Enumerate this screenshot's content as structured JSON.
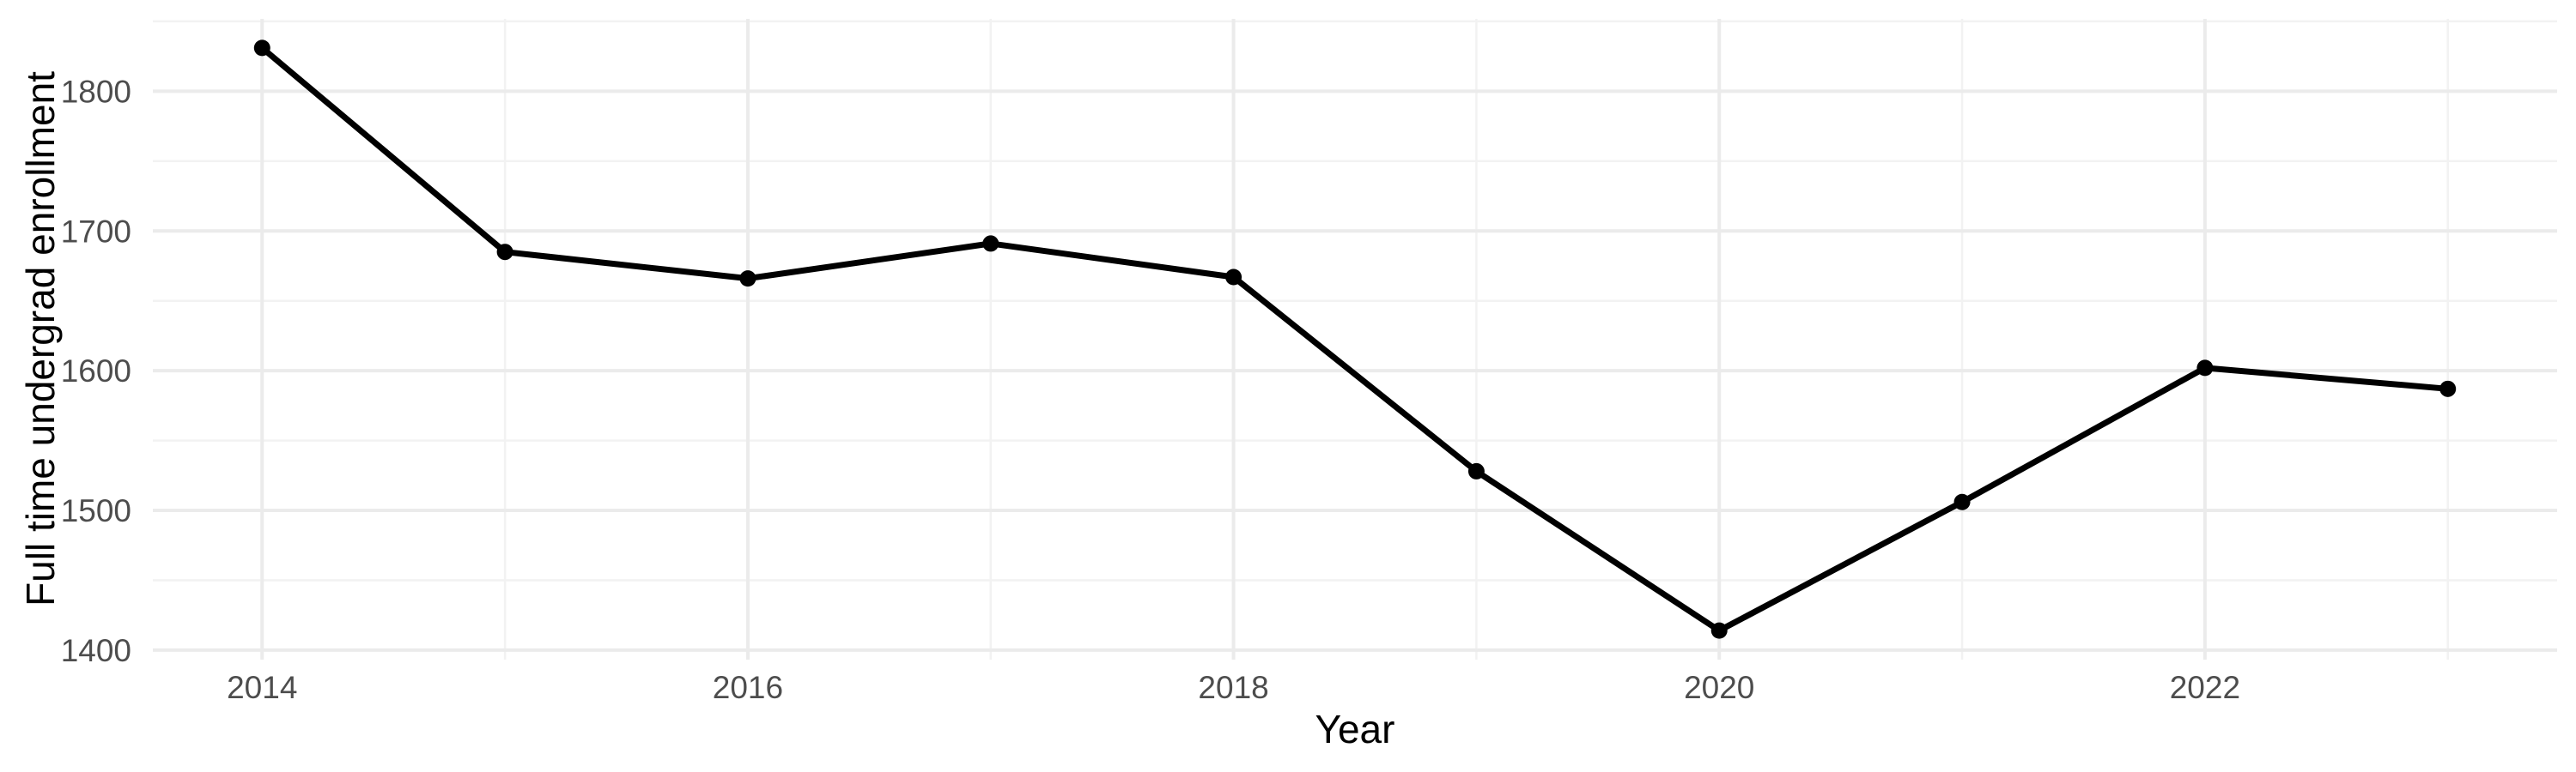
{
  "chart_data": {
    "type": "line",
    "title": "",
    "xlabel": "Year",
    "ylabel": "Full time undergrad enrollment",
    "x": [
      2014,
      2015,
      2016,
      2017,
      2018,
      2019,
      2020,
      2021,
      2022,
      2023
    ],
    "series": [
      {
        "name": "Full time undergrad enrollment",
        "values": [
          1831,
          1685,
          1666,
          1691,
          1667,
          1528,
          1414,
          1506,
          1602,
          1587
        ]
      }
    ],
    "x_major_ticks": [
      2014,
      2016,
      2018,
      2020,
      2022
    ],
    "x_tick_labels": [
      "2014",
      "2016",
      "2018",
      "2020",
      "2022"
    ],
    "x_minor_gridlines": [
      2015,
      2017,
      2019,
      2021,
      2023
    ],
    "y_major_ticks": [
      1400,
      1500,
      1600,
      1700,
      1800
    ],
    "y_tick_labels": [
      "1400",
      "1500",
      "1600",
      "1700",
      "1800"
    ],
    "y_minor_gridlines": [
      1450,
      1550,
      1650,
      1750,
      1850
    ],
    "xlim": [
      2013.55,
      2023.45
    ],
    "ylim": [
      1393.2,
      1851.8
    ],
    "grid": "major+minor",
    "legend": "none",
    "marker": "point",
    "colors": {
      "line": "#000000",
      "point": "#000000",
      "grid_major": "#ebebeb",
      "grid_minor": "#f2f2f2",
      "tick_label": "#4d4d4d",
      "axis_title": "#000000",
      "background": "#ffffff"
    }
  }
}
